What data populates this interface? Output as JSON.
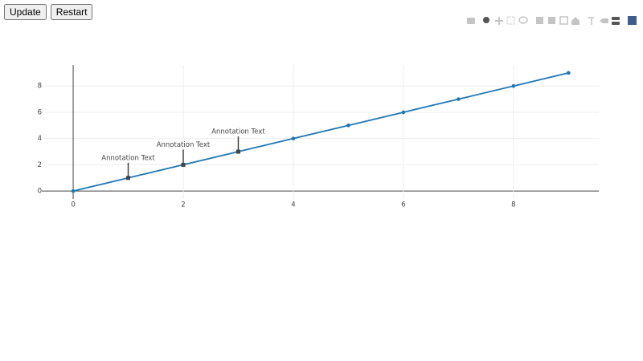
{
  "buttons": [
    "Update",
    "Restart"
  ],
  "chart_data": {
    "type": "line",
    "color": "#1f77b4",
    "x": [
      0,
      1,
      2,
      3,
      4,
      5,
      6,
      7,
      8,
      9
    ],
    "values": [
      0,
      1,
      2,
      3,
      4,
      5,
      6,
      7,
      8,
      9
    ],
    "xlim": [
      -0.57,
      9.55
    ],
    "ylim": [
      -0.6,
      9.6
    ],
    "xticks": [
      0,
      2,
      4,
      6,
      8
    ],
    "yticks": [
      0,
      2,
      4,
      6,
      8
    ],
    "grid": true,
    "annotations": [
      {
        "x": 1,
        "y": 1,
        "text": "Annotation Text"
      },
      {
        "x": 2,
        "y": 2,
        "text": "Annotation Text"
      },
      {
        "x": 3,
        "y": 3,
        "text": "Annotation Text"
      }
    ]
  }
}
